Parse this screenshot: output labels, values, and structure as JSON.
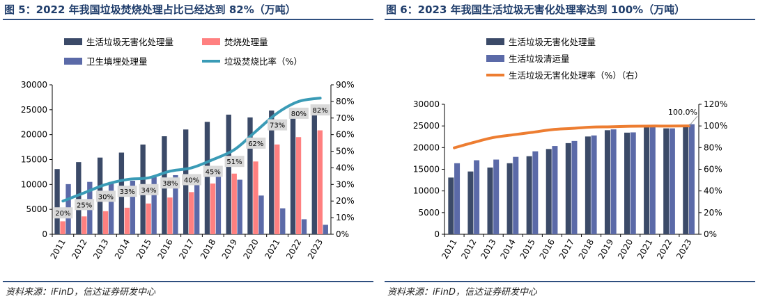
{
  "charts": [
    {
      "title": "图 5：2022 年我国垃圾焚烧处理占比已经达到 82%（万吨）",
      "source": "资料来源：iFinD，信达证券研发中心",
      "chart_data": {
        "type": "bar",
        "categories": [
          "2011",
          "2012",
          "2013",
          "2014",
          "2015",
          "2016",
          "2017",
          "2018",
          "2019",
          "2020",
          "2021",
          "2022",
          "2023"
        ],
        "series": [
          {
            "name": "生活垃圾无害化处理量",
            "kind": "bar",
            "axis": "left",
            "color": "#3b4a68",
            "values": [
              13090,
              14490,
              15394,
              16394,
              18013,
              19674,
              21034,
              22565,
              24013,
              23452,
              24839,
              24445,
              25240
            ]
          },
          {
            "name": "焚烧处理量",
            "kind": "bar",
            "axis": "left",
            "color": "#ff8080",
            "values": [
              2599,
              3584,
              4633,
              5330,
              6175,
              7378,
              8463,
              10185,
              12174,
              14608,
              18020,
              19502,
              20860
            ]
          },
          {
            "name": "卫生填埋处理量",
            "kind": "bar",
            "axis": "left",
            "color": "#5b6aa8",
            "values": [
              10064,
              10512,
              10493,
              10744,
              11483,
              11866,
              12038,
              11706,
              10948,
              7772,
              5209,
              3011,
              1900
            ]
          },
          {
            "name": "垃圾焚烧比率（%）",
            "kind": "line",
            "axis": "right",
            "color": "#3a9bb6",
            "values": [
              20,
              25,
              30,
              33,
              34,
              38,
              40,
              45,
              51,
              62,
              73,
              80,
              82
            ]
          }
        ],
        "data_labels": [
          "20%",
          "25%",
          "30%",
          "33%",
          "34%",
          "38%",
          "40%",
          "45%",
          "51%",
          "62%",
          "73%",
          "80%",
          "82%"
        ],
        "ylim_left": [
          0,
          30000
        ],
        "yticks_left": [
          "0",
          "5000",
          "10000",
          "15000",
          "20000",
          "25000",
          "30000"
        ],
        "ylim_right": [
          0,
          90
        ],
        "yticks_right": [
          "0%",
          "10%",
          "20%",
          "30%",
          "40%",
          "50%",
          "60%",
          "70%",
          "80%",
          "90%"
        ],
        "legend": "top"
      }
    },
    {
      "title": "图 6：2023 年我国生活垃圾无害化处理率达到 100%（万吨）",
      "source": "资料来源：iFinD，信达证券研发中心",
      "chart_data": {
        "type": "bar",
        "categories": [
          "2011",
          "2012",
          "2013",
          "2014",
          "2015",
          "2016",
          "2017",
          "2018",
          "2019",
          "2020",
          "2021",
          "2022",
          "2023"
        ],
        "series": [
          {
            "name": "生活垃圾无害化处理量",
            "kind": "bar",
            "axis": "left",
            "color": "#3b4a68",
            "values": [
              13090,
              14490,
              15394,
              16394,
              18013,
              19674,
              21034,
              22565,
              24013,
              23452,
              24839,
              24445,
              25240
            ]
          },
          {
            "name": "生活垃圾清运量",
            "kind": "bar",
            "axis": "left",
            "color": "#5b6aa8",
            "values": [
              16395,
              17081,
              17239,
              17860,
              19142,
              20362,
              21521,
              22802,
              24206,
              23512,
              24869,
              24445,
              25400
            ]
          },
          {
            "name": "生活垃圾无害化处理率（%）（右）",
            "kind": "line",
            "axis": "right",
            "color": "#ed7d31",
            "values": [
              79.8,
              84.8,
              89.3,
              91.8,
              94.1,
              96.6,
              97.7,
              98.9,
              99.2,
              99.7,
              99.9,
              99.9,
              100.0
            ]
          }
        ],
        "end_label": "100.0%",
        "ylim_left": [
          0,
          30000
        ],
        "yticks_left": [
          "0",
          "5000",
          "10000",
          "15000",
          "20000",
          "25000",
          "30000"
        ],
        "ylim_right": [
          0,
          120
        ],
        "yticks_right": [
          "0%",
          "20%",
          "40%",
          "60%",
          "80%",
          "100%",
          "120%"
        ],
        "legend": "top-left"
      }
    }
  ]
}
